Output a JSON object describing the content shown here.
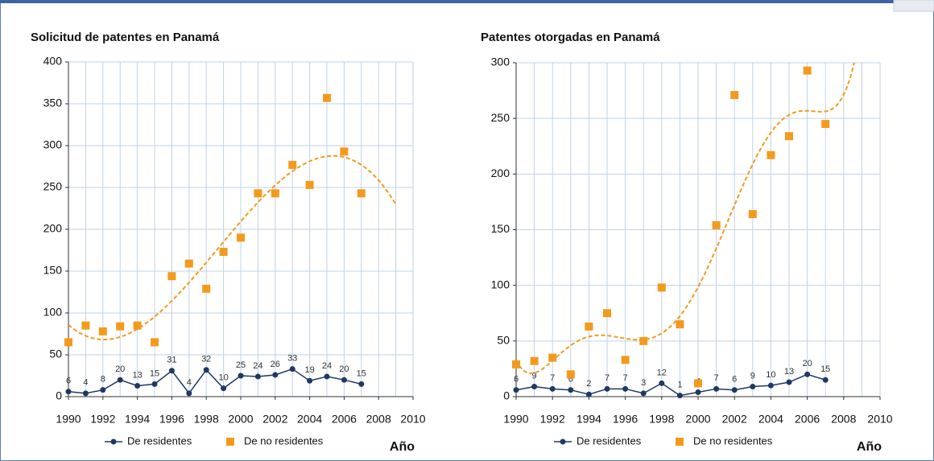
{
  "chart_data": [
    {
      "type": "line",
      "title": "Solicitud de patentes en Panamá",
      "xlabel": "Año",
      "x": [
        1990,
        1991,
        1992,
        1993,
        1994,
        1995,
        1996,
        1997,
        1998,
        1999,
        2000,
        2001,
        2002,
        2003,
        2004,
        2005,
        2006,
        2007
      ],
      "series": [
        {
          "name": "De residentes",
          "color": "#1f3864",
          "marker": "circle",
          "style": "line",
          "values": [
            6,
            4,
            8,
            20,
            13,
            15,
            31,
            4,
            32,
            10,
            25,
            24,
            26,
            33,
            19,
            24,
            20,
            15
          ]
        },
        {
          "name": "De no residentes",
          "color": "#f39a1e",
          "marker": "square",
          "style": "scatter",
          "values": [
            65,
            85,
            78,
            84,
            85,
            65,
            144,
            159,
            129,
            173,
            190,
            243,
            243,
            277,
            253,
            357,
            293,
            243
          ],
          "trendline": {
            "order": 3
          }
        }
      ],
      "xlim": [
        1990,
        2010
      ],
      "xticks": [
        1990,
        1992,
        1994,
        1996,
        1998,
        2000,
        2002,
        2004,
        2006,
        2008,
        2010
      ],
      "ylim": [
        0,
        400
      ],
      "yticks": [
        0,
        50,
        100,
        150,
        200,
        250,
        300,
        350,
        400
      ],
      "grid": true,
      "legend": "bottom"
    },
    {
      "type": "line",
      "title": "Patentes otorgadas en Panamá",
      "xlabel": "Año",
      "x": [
        1990,
        1991,
        1992,
        1993,
        1994,
        1995,
        1996,
        1997,
        1998,
        1999,
        2000,
        2001,
        2002,
        2003,
        2004,
        2005,
        2006,
        2007
      ],
      "series": [
        {
          "name": "De residentes",
          "color": "#1f3864",
          "marker": "circle",
          "style": "line",
          "values": [
            6,
            9,
            7,
            6,
            2,
            7,
            7,
            3,
            12,
            1,
            4,
            7,
            6,
            9,
            10,
            13,
            20,
            15
          ]
        },
        {
          "name": "De no residentes",
          "color": "#f39a1e",
          "marker": "square",
          "style": "scatter",
          "values": [
            29,
            32,
            35,
            20,
            63,
            75,
            33,
            50,
            98,
            65,
            12,
            154,
            271,
            164,
            217,
            234,
            293,
            245
          ],
          "trendline": {
            "order": 6
          }
        }
      ],
      "xlim": [
        1990,
        2010
      ],
      "xticks": [
        1990,
        1992,
        1994,
        1996,
        1998,
        2000,
        2002,
        2004,
        2006,
        2008,
        2010
      ],
      "ylim": [
        0,
        300
      ],
      "yticks": [
        0,
        50,
        100,
        150,
        200,
        250,
        300
      ],
      "grid": true,
      "legend": "bottom"
    }
  ]
}
